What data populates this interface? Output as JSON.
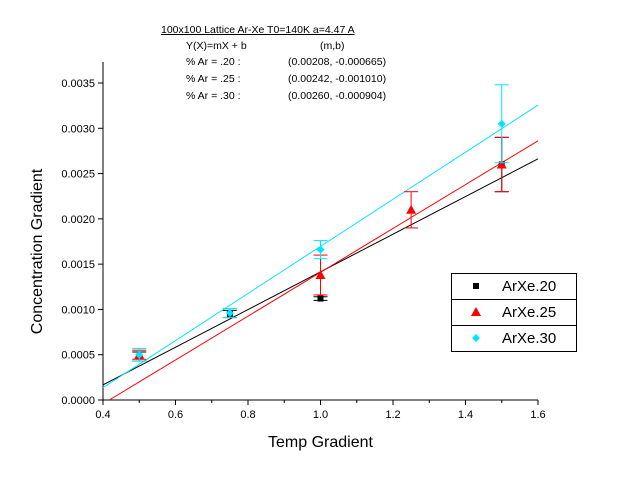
{
  "annotation": {
    "title": "100x100 Lattice   Ar-Xe      T0=140K   a=4.47 A",
    "eq_label": "Y(X)=mX + b",
    "mb_label": "(m,b)",
    "rows": [
      {
        "label": "% Ar = .20 :",
        "value": "(0.00208, -0.000665)"
      },
      {
        "label": "% Ar = .25 :",
        "value": "(0.00242, -0.001010)"
      },
      {
        "label": "% Ar = .30 :",
        "value": "(0.00260, -0.000904)"
      }
    ]
  },
  "chart_data": {
    "type": "scatter",
    "title": "",
    "xlabel": "Temp Gradient",
    "ylabel": "Concentration Gradient",
    "xlim": [
      0.4,
      1.6
    ],
    "ylim": [
      0,
      0.0035
    ],
    "xticks": [
      "0.4",
      "0.6",
      "0.8",
      "1.0",
      "1.2",
      "1.4",
      "1.6"
    ],
    "yticks": [
      "0.0000",
      "0.0005",
      "0.0010",
      "0.0015",
      "0.0020",
      "0.0025",
      "0.0030",
      "0.0035"
    ],
    "legend_position": "right",
    "grid": false,
    "series": [
      {
        "name": "ArXe.20",
        "color": "#000000",
        "marker": "square",
        "slope": 0.00208,
        "intercept": -0.000665,
        "x": [
          0.5,
          0.75,
          1.0,
          1.5
        ],
        "y": [
          0.00048,
          0.00095,
          0.00112,
          0.0026
        ],
        "err": [
          5e-05,
          4e-05,
          2e-05,
          0.0003
        ]
      },
      {
        "name": "ArXe.25",
        "color": "#ff0000",
        "marker": "triangle",
        "slope": 0.00242,
        "intercept": -0.00101,
        "x": [
          0.5,
          1.0,
          1.25,
          1.5
        ],
        "y": [
          0.0005,
          0.00138,
          0.0021,
          0.0026
        ],
        "err": [
          5e-05,
          0.00022,
          0.0002,
          0.0003
        ]
      },
      {
        "name": "ArXe.30",
        "color": "#00e5ff",
        "marker": "diamond",
        "slope": 0.0026,
        "intercept": -0.000904,
        "x": [
          0.5,
          0.75,
          1.0,
          1.5
        ],
        "y": [
          0.0005,
          0.00096,
          0.00166,
          0.00305
        ],
        "err": [
          7e-05,
          5e-05,
          0.0001,
          0.00043
        ]
      }
    ]
  }
}
